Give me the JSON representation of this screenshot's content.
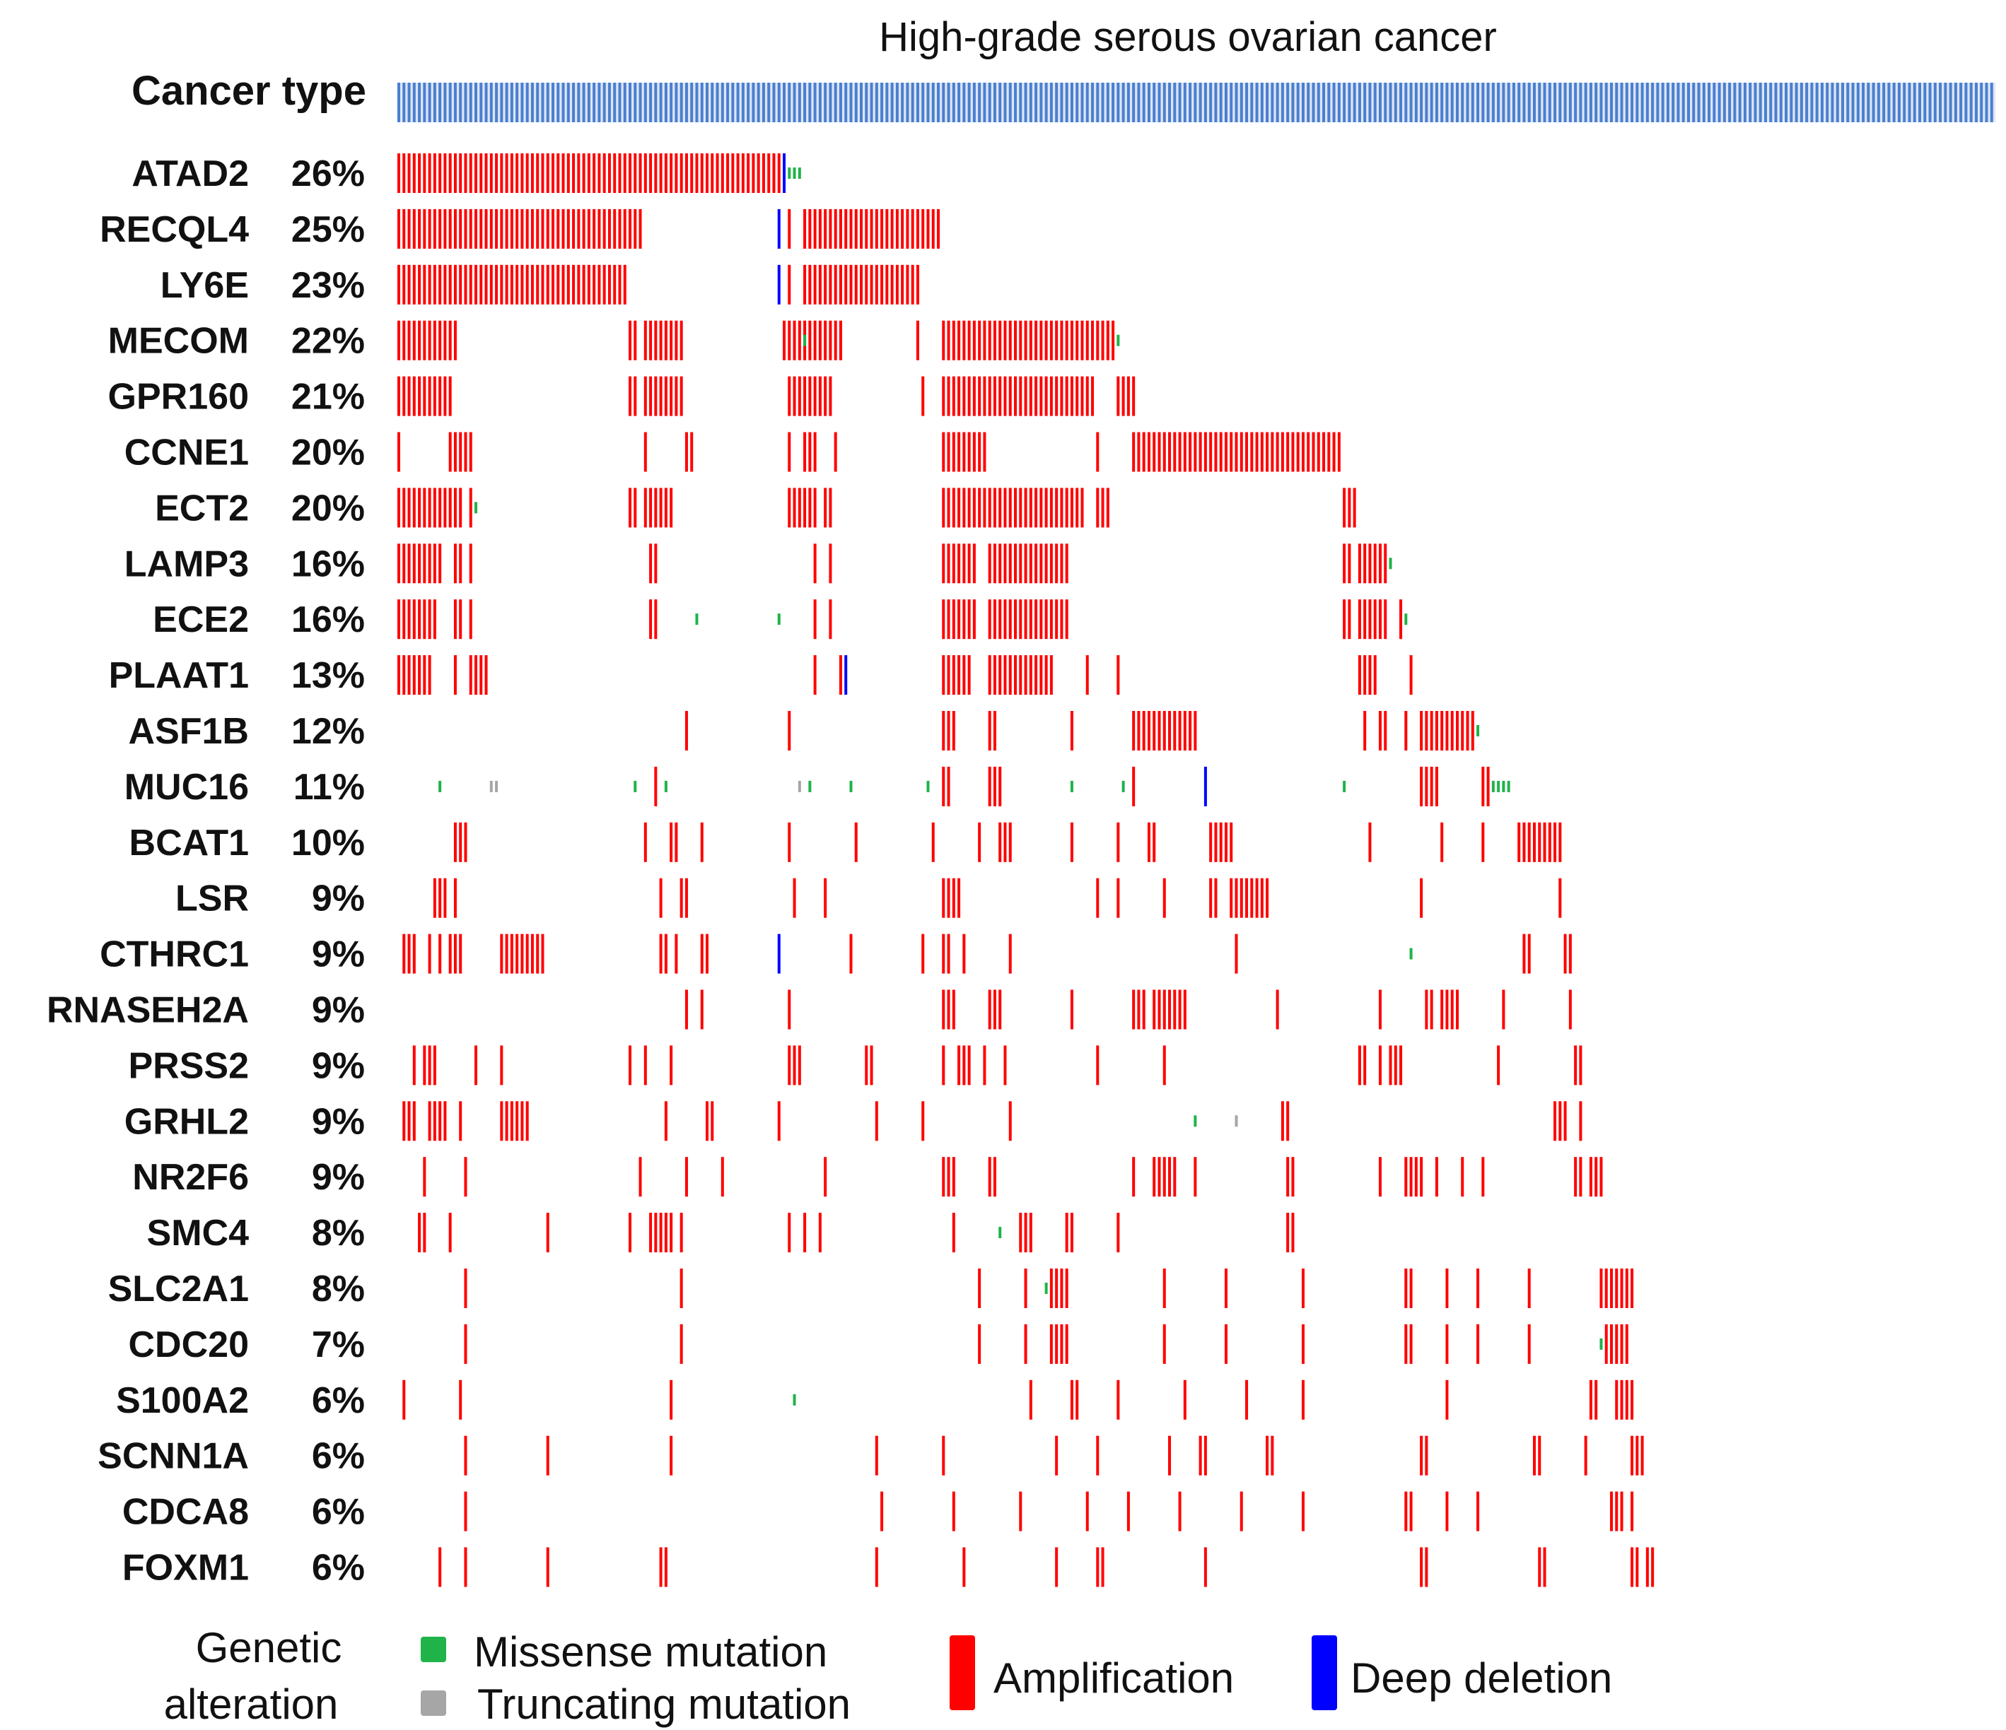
{
  "chart_data": {
    "type": "oncoprint",
    "title": "High-grade serous ovarian cancer",
    "track_label": "Cancer type",
    "n_samples": 311,
    "colors": {
      "cancer_type": "#4a7fd0",
      "amplification": "#ff0000",
      "deep_deletion": "#0000ff",
      "missense": "#1fb34a",
      "truncating": "#a6a6a6"
    },
    "genes": [
      {
        "name": "ATAD2",
        "pct": "26%",
        "amp": [
          [
            0,
            74
          ]
        ],
        "del": [
          75
        ],
        "mis": [
          76,
          77,
          78
        ]
      },
      {
        "name": "RECQL4",
        "pct": "25%",
        "amp": [
          [
            0,
            47
          ],
          76,
          [
            79,
            105
          ]
        ],
        "del": [
          74
        ]
      },
      {
        "name": "LY6E",
        "pct": "23%",
        "amp": [
          [
            0,
            44
          ],
          76,
          [
            79,
            101
          ]
        ],
        "del": [
          74
        ]
      },
      {
        "name": "MECOM",
        "pct": "22%",
        "amp": [
          [
            0,
            11
          ],
          [
            45,
            46
          ],
          [
            48,
            55
          ],
          [
            75,
            86
          ],
          101,
          [
            106,
            139
          ]
        ],
        "mis": [
          79,
          140
        ]
      },
      {
        "name": "GPR160",
        "pct": "21%",
        "amp": [
          [
            0,
            10
          ],
          [
            45,
            46
          ],
          [
            48,
            55
          ],
          [
            76,
            84
          ],
          102,
          [
            106,
            135
          ],
          [
            140,
            143
          ]
        ]
      },
      {
        "name": "CCNE1",
        "pct": "20%",
        "amp": [
          0,
          [
            10,
            14
          ],
          48,
          [
            56,
            57
          ],
          76,
          [
            79,
            81
          ],
          85,
          [
            106,
            114
          ],
          136,
          [
            143,
            183
          ]
        ]
      },
      {
        "name": "ECT2",
        "pct": "20%",
        "amp": [
          [
            0,
            10
          ],
          [
            11,
            12
          ],
          14,
          [
            45,
            46
          ],
          [
            48,
            53
          ],
          [
            76,
            77
          ],
          [
            78,
            81
          ],
          [
            83,
            84
          ],
          [
            106,
            133
          ],
          [
            136,
            137
          ],
          138,
          [
            184,
            186
          ]
        ],
        "mis": [
          15
        ]
      },
      {
        "name": "LAMP3",
        "pct": "16%",
        "amp": [
          [
            0,
            8
          ],
          [
            11,
            12
          ],
          14,
          [
            49,
            50
          ],
          81,
          84,
          [
            106,
            112
          ],
          [
            115,
            130
          ],
          [
            184,
            185
          ],
          [
            187,
            192
          ]
        ],
        "mis": [
          193
        ]
      },
      {
        "name": "ECE2",
        "pct": "16%",
        "amp": [
          [
            0,
            7
          ],
          [
            11,
            12
          ],
          14,
          [
            49,
            50
          ],
          81,
          84,
          [
            106,
            112
          ],
          [
            115,
            130
          ],
          [
            184,
            185
          ],
          [
            187,
            192
          ],
          195
        ],
        "mis": [
          58,
          74,
          196
        ]
      },
      {
        "name": "PLAAT1",
        "pct": "13%",
        "amp": [
          [
            0,
            6
          ],
          11,
          [
            14,
            17
          ],
          81,
          86,
          [
            106,
            111
          ],
          [
            115,
            127
          ],
          134,
          140,
          [
            187,
            190
          ],
          197
        ],
        "del": [
          87
        ]
      },
      {
        "name": "ASF1B",
        "pct": "12%",
        "amp": [
          56,
          76,
          [
            106,
            108
          ],
          [
            115,
            116
          ],
          131,
          [
            143,
            155
          ],
          188,
          [
            191,
            192
          ],
          196,
          [
            199,
            209
          ]
        ],
        "mis": [
          210
        ]
      },
      {
        "name": "MUC16",
        "pct": "11%",
        "amp": [
          50,
          [
            106,
            107
          ],
          [
            115,
            117
          ],
          143,
          [
            199,
            202
          ],
          [
            211,
            212
          ]
        ],
        "del": [
          157
        ],
        "mis": [
          8,
          46,
          52,
          80,
          88,
          103,
          131,
          141,
          184,
          213,
          214,
          215,
          216
        ],
        "tru": [
          18,
          19,
          78
        ]
      },
      {
        "name": "BCAT1",
        "pct": "10%",
        "amp": [
          [
            11,
            13
          ],
          48,
          [
            53,
            54
          ],
          59,
          76,
          89,
          104,
          113,
          [
            117,
            119
          ],
          131,
          140,
          [
            146,
            147
          ],
          [
            158,
            162
          ],
          189,
          203,
          211,
          [
            218,
            226
          ]
        ]
      },
      {
        "name": "LSR",
        "pct": "9%",
        "amp": [
          7,
          [
            8,
            9
          ],
          11,
          51,
          [
            55,
            56
          ],
          77,
          83,
          [
            106,
            109
          ],
          136,
          140,
          149,
          [
            158,
            159
          ],
          [
            162,
            169
          ],
          199,
          226
        ]
      },
      {
        "name": "CTHRC1",
        "pct": "9%",
        "amp": [
          [
            1,
            3
          ],
          6,
          8,
          [
            10,
            12
          ],
          [
            20,
            28
          ],
          [
            51,
            52
          ],
          54,
          [
            59,
            60
          ],
          88,
          102,
          [
            106,
            107
          ],
          110,
          119,
          163,
          [
            219,
            220
          ],
          [
            227,
            228
          ]
        ],
        "del": [
          74
        ],
        "mis": [
          197
        ]
      },
      {
        "name": "RNASEH2A",
        "pct": "9%",
        "amp": [
          56,
          59,
          76,
          [
            106,
            108
          ],
          [
            115,
            117
          ],
          131,
          [
            143,
            145
          ],
          [
            147,
            153
          ],
          171,
          191,
          [
            200,
            201
          ],
          [
            203,
            206
          ],
          215,
          228
        ]
      },
      {
        "name": "PRSS2",
        "pct": "9%",
        "amp": [
          3,
          [
            5,
            7
          ],
          15,
          20,
          45,
          48,
          53,
          [
            76,
            78
          ],
          [
            91,
            92
          ],
          106,
          [
            109,
            111
          ],
          114,
          118,
          136,
          149,
          [
            187,
            188
          ],
          191,
          [
            193,
            195
          ],
          214,
          [
            229,
            230
          ]
        ]
      },
      {
        "name": "GRHL2",
        "pct": "9%",
        "amp": [
          [
            1,
            3
          ],
          [
            6,
            9
          ],
          12,
          [
            20,
            25
          ],
          52,
          [
            60,
            61
          ],
          74,
          93,
          102,
          119,
          [
            172,
            173
          ],
          [
            225,
            227
          ],
          230
        ],
        "mis": [
          155
        ],
        "tru": [
          163
        ]
      },
      {
        "name": "NR2F6",
        "pct": "9%",
        "amp": [
          5,
          13,
          47,
          56,
          63,
          83,
          [
            106,
            108
          ],
          [
            115,
            116
          ],
          143,
          [
            147,
            151
          ],
          155,
          [
            173,
            174
          ],
          191,
          [
            196,
            199
          ],
          202,
          207,
          211,
          [
            229,
            230
          ],
          [
            232,
            234
          ]
        ]
      },
      {
        "name": "SMC4",
        "pct": "8%",
        "amp": [
          [
            4,
            5
          ],
          10,
          29,
          45,
          [
            49,
            53
          ],
          55,
          76,
          79,
          82,
          108,
          [
            121,
            123
          ],
          [
            130,
            131
          ],
          140,
          [
            173,
            174
          ]
        ],
        "mis": [
          117
        ]
      },
      {
        "name": "SLC2A1",
        "pct": "8%",
        "amp": [
          13,
          55,
          113,
          122,
          [
            127,
            130
          ],
          149,
          161,
          176,
          [
            196,
            197
          ],
          204,
          210,
          220,
          [
            234,
            240
          ]
        ],
        "mis": [
          126
        ]
      },
      {
        "name": "CDC20",
        "pct": "7%",
        "amp": [
          13,
          55,
          113,
          122,
          [
            127,
            130
          ],
          149,
          161,
          176,
          [
            196,
            197
          ],
          204,
          210,
          220,
          [
            235,
            239
          ]
        ],
        "mis": [
          234
        ]
      },
      {
        "name": "S100A2",
        "pct": "6%",
        "amp": [
          1,
          12,
          53,
          123,
          [
            131,
            132
          ],
          140,
          153,
          165,
          176,
          204,
          [
            232,
            233
          ],
          [
            237,
            240
          ]
        ],
        "mis": [
          77
        ]
      },
      {
        "name": "SCNN1A",
        "pct": "6%",
        "amp": [
          13,
          29,
          53,
          93,
          106,
          128,
          136,
          150,
          [
            156,
            157
          ],
          [
            169,
            170
          ],
          [
            199,
            200
          ],
          [
            221,
            222
          ],
          231,
          [
            240,
            242
          ]
        ]
      },
      {
        "name": "CDCA8",
        "pct": "6%",
        "amp": [
          13,
          94,
          108,
          121,
          134,
          142,
          152,
          164,
          176,
          [
            196,
            197
          ],
          204,
          210,
          [
            236,
            238
          ],
          240
        ]
      },
      {
        "name": "FOXM1",
        "pct": "6%",
        "amp": [
          8,
          13,
          29,
          [
            51,
            52
          ],
          93,
          110,
          128,
          [
            136,
            137
          ],
          157,
          [
            199,
            200
          ],
          [
            222,
            223
          ],
          [
            240,
            241
          ],
          [
            243,
            244
          ]
        ]
      }
    ]
  },
  "legend": {
    "title_line1": "Genetic",
    "title_line2": "alteration",
    "missense": "Missense mutation",
    "truncating": "Truncating mutation",
    "amplification": "Amplification",
    "deep_deletion": "Deep deletion"
  }
}
